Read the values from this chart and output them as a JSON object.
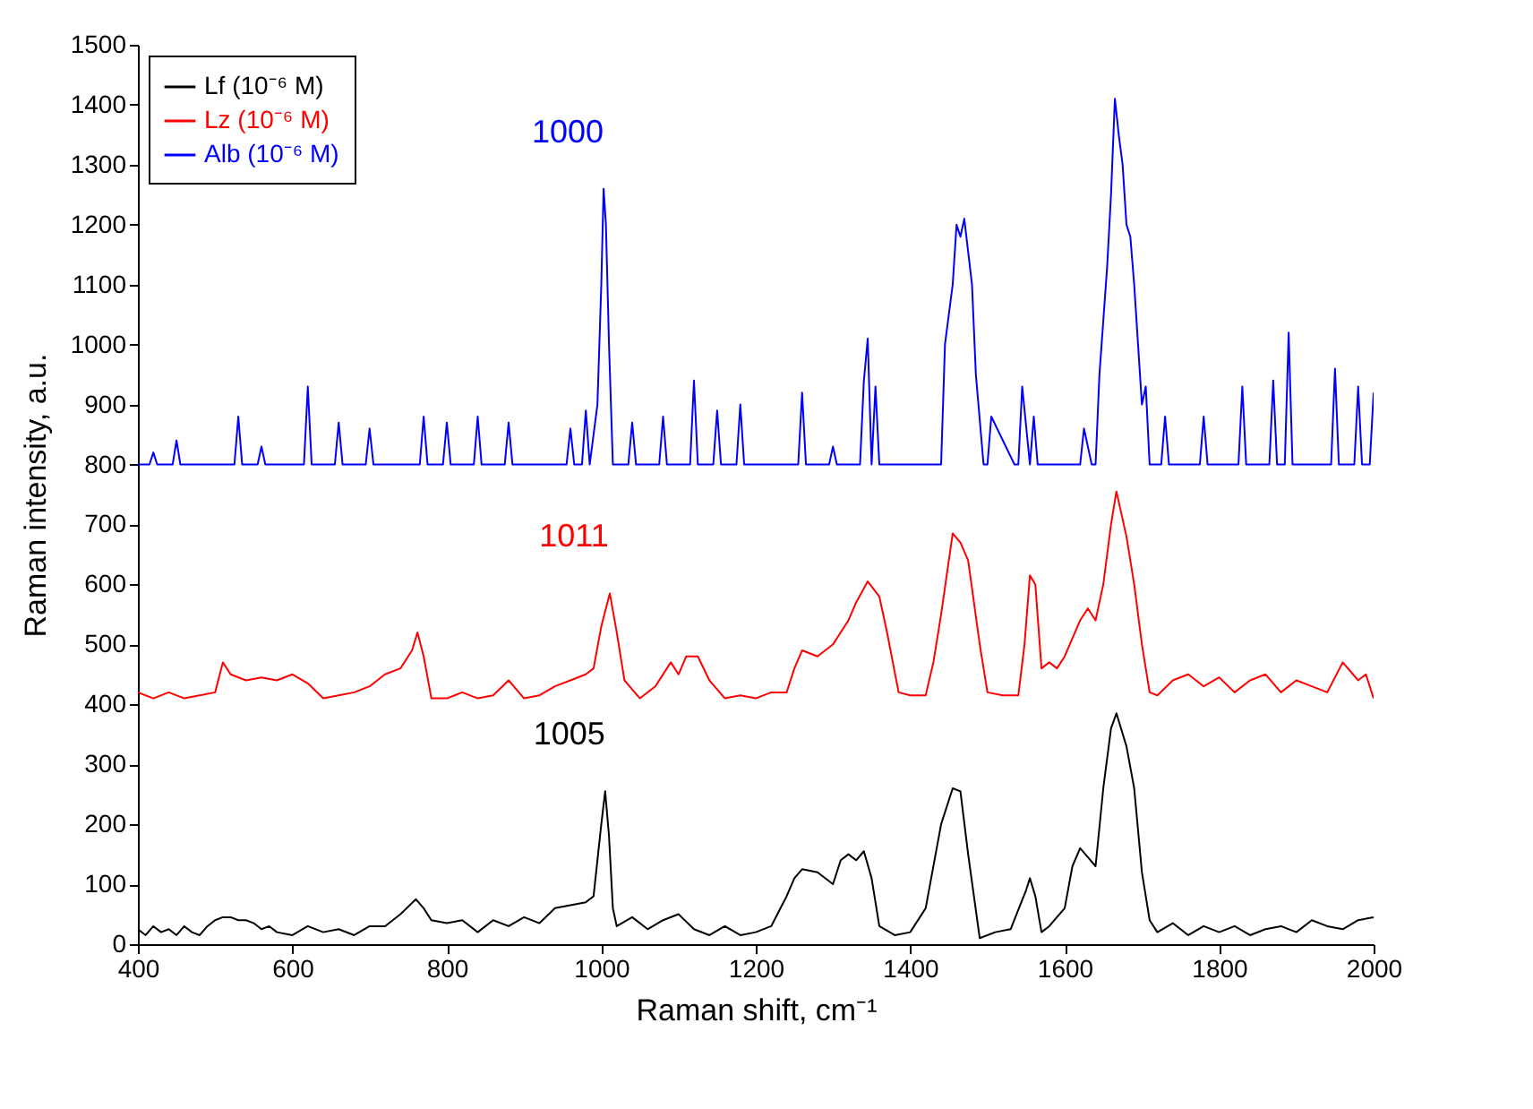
{
  "chart_data": {
    "type": "line",
    "xlabel": "Raman shift, cm⁻¹",
    "ylabel": "Raman intensity, a.u.",
    "xlim": [
      400,
      2000
    ],
    "xticks": [
      400,
      600,
      800,
      1000,
      1200,
      1400,
      1600,
      1800,
      2000
    ],
    "ylim": [
      0,
      1500
    ],
    "yticks": [
      0,
      100,
      200,
      300,
      400,
      500,
      600,
      700,
      800,
      900,
      1000,
      1100,
      1200,
      1300,
      1400,
      1500
    ],
    "grid": false,
    "legend": "top left",
    "marker": "none",
    "line_style": "solid",
    "annotations": [
      {
        "text": "1000",
        "x": 1003,
        "y": 1260
      },
      {
        "text": "1011",
        "x": 1011,
        "y": 585
      },
      {
        "text": "1005",
        "x": 1005,
        "y": 255
      }
    ],
    "series": [
      {
        "name": "Lf (10⁻⁶ M)",
        "color": "#000000",
        "x": [
          400,
          410,
          420,
          430,
          440,
          450,
          460,
          470,
          480,
          490,
          500,
          510,
          520,
          530,
          540,
          550,
          560,
          570,
          580,
          600,
          620,
          640,
          660,
          680,
          700,
          720,
          740,
          760,
          770,
          780,
          800,
          820,
          840,
          860,
          880,
          900,
          920,
          940,
          960,
          980,
          990,
          1000,
          1005,
          1010,
          1015,
          1020,
          1040,
          1060,
          1080,
          1100,
          1120,
          1140,
          1160,
          1180,
          1200,
          1220,
          1240,
          1250,
          1260,
          1280,
          1300,
          1310,
          1320,
          1330,
          1340,
          1350,
          1360,
          1380,
          1400,
          1420,
          1440,
          1455,
          1465,
          1475,
          1490,
          1510,
          1530,
          1550,
          1555,
          1562,
          1570,
          1580,
          1600,
          1610,
          1620,
          1630,
          1640,
          1650,
          1660,
          1667,
          1680,
          1690,
          1700,
          1710,
          1720,
          1740,
          1760,
          1780,
          1800,
          1820,
          1840,
          1860,
          1880,
          1900,
          1920,
          1940,
          1960,
          1980,
          2000
        ],
        "values": [
          25,
          15,
          30,
          20,
          25,
          15,
          30,
          20,
          15,
          30,
          40,
          45,
          45,
          40,
          40,
          35,
          25,
          30,
          20,
          15,
          30,
          20,
          25,
          15,
          30,
          30,
          50,
          75,
          60,
          40,
          35,
          40,
          20,
          40,
          30,
          45,
          35,
          60,
          65,
          70,
          80,
          200,
          255,
          180,
          60,
          30,
          45,
          25,
          40,
          50,
          25,
          15,
          30,
          15,
          20,
          30,
          80,
          110,
          125,
          120,
          100,
          140,
          150,
          140,
          155,
          110,
          30,
          15,
          20,
          60,
          200,
          260,
          255,
          150,
          10,
          20,
          25,
          90,
          110,
          80,
          20,
          30,
          60,
          130,
          160,
          145,
          130,
          260,
          360,
          385,
          330,
          260,
          120,
          40,
          20,
          35,
          15,
          30,
          20,
          30,
          15,
          25,
          30,
          20,
          40,
          30,
          25,
          40,
          45
        ]
      },
      {
        "name": "Lz (10⁻⁶ M)",
        "color": "#ff0000",
        "x": [
          400,
          420,
          440,
          460,
          480,
          500,
          510,
          520,
          540,
          560,
          580,
          600,
          620,
          640,
          660,
          680,
          700,
          720,
          740,
          755,
          762,
          770,
          780,
          800,
          820,
          840,
          860,
          880,
          900,
          920,
          940,
          960,
          980,
          990,
          1000,
          1011,
          1020,
          1030,
          1050,
          1070,
          1090,
          1100,
          1110,
          1125,
          1140,
          1160,
          1180,
          1200,
          1220,
          1240,
          1250,
          1260,
          1280,
          1300,
          1320,
          1330,
          1345,
          1360,
          1370,
          1385,
          1400,
          1420,
          1430,
          1440,
          1450,
          1455,
          1465,
          1475,
          1490,
          1500,
          1520,
          1540,
          1548,
          1555,
          1562,
          1570,
          1580,
          1590,
          1600,
          1620,
          1630,
          1640,
          1650,
          1660,
          1667,
          1680,
          1690,
          1700,
          1710,
          1720,
          1740,
          1760,
          1780,
          1800,
          1820,
          1840,
          1860,
          1880,
          1900,
          1920,
          1940,
          1960,
          1980,
          1990,
          2000
        ],
        "values": [
          420,
          410,
          420,
          410,
          415,
          420,
          470,
          450,
          440,
          445,
          440,
          450,
          435,
          410,
          415,
          420,
          430,
          450,
          460,
          490,
          520,
          480,
          410,
          410,
          420,
          410,
          415,
          440,
          410,
          415,
          430,
          440,
          450,
          460,
          530,
          585,
          520,
          440,
          410,
          430,
          470,
          450,
          480,
          480,
          440,
          410,
          415,
          410,
          420,
          420,
          460,
          490,
          480,
          500,
          540,
          570,
          605,
          580,
          520,
          420,
          415,
          415,
          470,
          550,
          640,
          685,
          670,
          640,
          500,
          420,
          415,
          415,
          500,
          615,
          600,
          460,
          470,
          460,
          480,
          540,
          560,
          540,
          600,
          700,
          755,
          680,
          600,
          500,
          420,
          415,
          440,
          450,
          430,
          445,
          420,
          440,
          450,
          420,
          440,
          430,
          420,
          470,
          440,
          450,
          410
        ]
      },
      {
        "name": "Alb (10⁻⁶ M)",
        "color": "#0000ff",
        "x": [
          400,
          415,
          420,
          425,
          445,
          450,
          455,
          525,
          530,
          535,
          555,
          560,
          565,
          615,
          620,
          625,
          655,
          660,
          665,
          695,
          700,
          705,
          765,
          770,
          775,
          795,
          800,
          805,
          835,
          840,
          845,
          875,
          880,
          885,
          955,
          960,
          965,
          975,
          980,
          985,
          995,
          1000,
          1003,
          1006,
          1010,
          1015,
          1035,
          1040,
          1045,
          1075,
          1080,
          1085,
          1115,
          1120,
          1125,
          1145,
          1150,
          1155,
          1175,
          1180,
          1185,
          1255,
          1260,
          1265,
          1295,
          1300,
          1305,
          1335,
          1340,
          1345,
          1350,
          1355,
          1360,
          1365,
          1435,
          1440,
          1445,
          1455,
          1460,
          1465,
          1470,
          1480,
          1485,
          1495,
          1500,
          1505,
          1535,
          1540,
          1545,
          1555,
          1560,
          1565,
          1615,
          1620,
          1625,
          1635,
          1640,
          1645,
          1655,
          1660,
          1665,
          1670,
          1675,
          1680,
          1685,
          1690,
          1695,
          1700,
          1705,
          1710,
          1715,
          1725,
          1730,
          1735,
          1775,
          1780,
          1785,
          1825,
          1830,
          1835,
          1865,
          1870,
          1875,
          1885,
          1890,
          1895,
          1945,
          1950,
          1955,
          1975,
          1980,
          1985,
          1995,
          2000
        ],
        "values": [
          800,
          800,
          820,
          800,
          800,
          840,
          800,
          800,
          880,
          800,
          800,
          830,
          800,
          800,
          930,
          800,
          800,
          870,
          800,
          800,
          860,
          800,
          800,
          880,
          800,
          800,
          870,
          800,
          800,
          880,
          800,
          800,
          870,
          800,
          800,
          860,
          800,
          800,
          890,
          800,
          900,
          1100,
          1260,
          1200,
          1000,
          800,
          800,
          870,
          800,
          800,
          880,
          800,
          800,
          940,
          800,
          800,
          890,
          800,
          800,
          900,
          800,
          800,
          920,
          800,
          800,
          830,
          800,
          800,
          940,
          1010,
          800,
          930,
          800,
          800,
          800,
          800,
          1000,
          1100,
          1200,
          1180,
          1210,
          1100,
          950,
          800,
          800,
          880,
          800,
          800,
          930,
          800,
          880,
          800,
          800,
          800,
          860,
          800,
          800,
          950,
          1130,
          1250,
          1410,
          1350,
          1300,
          1200,
          1180,
          1100,
          1000,
          900,
          930,
          800,
          800,
          800,
          880,
          800,
          800,
          880,
          800,
          800,
          930,
          800,
          800,
          940,
          800,
          800,
          1020,
          800,
          800,
          960,
          800,
          800,
          930,
          800,
          800,
          920
        ]
      }
    ]
  }
}
